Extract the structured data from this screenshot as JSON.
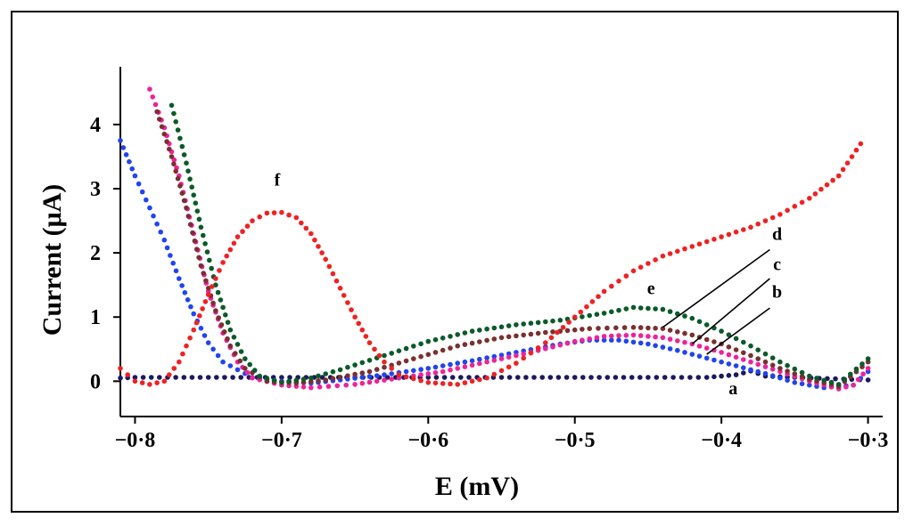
{
  "chart_data": {
    "type": "scatter",
    "title": "",
    "xlabel": "E (mV)",
    "ylabel": "Current (μA)",
    "xlim": [
      -0.81,
      -0.29
    ],
    "ylim": [
      -0.55,
      4.9
    ],
    "x_ticks": [
      -0.8,
      -0.7,
      -0.6,
      -0.5,
      -0.4,
      -0.3
    ],
    "x_tick_labels": [
      "−0·8",
      "−0·7",
      "−0·6",
      "−0·5",
      "−0·4",
      "−0·3"
    ],
    "y_ticks": [
      0,
      1,
      2,
      3,
      4
    ],
    "y_tick_labels": [
      "0",
      "1",
      "2",
      "3",
      "4"
    ],
    "grid": false,
    "series": [
      {
        "name": "a",
        "color": "#1a1a5c",
        "points": [
          [
            -0.81,
            0.05
          ],
          [
            -0.8,
            0.06
          ],
          [
            -0.75,
            0.06
          ],
          [
            -0.7,
            0.06
          ],
          [
            -0.65,
            0.06
          ],
          [
            -0.6,
            0.06
          ],
          [
            -0.55,
            0.06
          ],
          [
            -0.5,
            0.06
          ],
          [
            -0.45,
            0.06
          ],
          [
            -0.41,
            0.06
          ],
          [
            -0.39,
            0.1
          ],
          [
            -0.38,
            0.16
          ],
          [
            -0.37,
            0.08
          ],
          [
            -0.35,
            0.06
          ],
          [
            -0.3,
            0.02
          ]
        ]
      },
      {
        "name": "b",
        "color": "#2244ee",
        "points": [
          [
            -0.81,
            3.75
          ],
          [
            -0.8,
            3.2
          ],
          [
            -0.79,
            2.7
          ],
          [
            -0.78,
            2.2
          ],
          [
            -0.77,
            1.6
          ],
          [
            -0.76,
            1.05
          ],
          [
            -0.75,
            0.6
          ],
          [
            -0.74,
            0.3
          ],
          [
            -0.72,
            0.06
          ],
          [
            -0.7,
            0.0
          ],
          [
            -0.68,
            -0.03
          ],
          [
            -0.66,
            0.02
          ],
          [
            -0.63,
            0.1
          ],
          [
            -0.6,
            0.2
          ],
          [
            -0.57,
            0.32
          ],
          [
            -0.54,
            0.45
          ],
          [
            -0.51,
            0.58
          ],
          [
            -0.49,
            0.64
          ],
          [
            -0.47,
            0.64
          ],
          [
            -0.45,
            0.58
          ],
          [
            -0.43,
            0.48
          ],
          [
            -0.41,
            0.36
          ],
          [
            -0.39,
            0.24
          ],
          [
            -0.37,
            0.12
          ],
          [
            -0.35,
            -0.02
          ],
          [
            -0.33,
            -0.1
          ],
          [
            -0.31,
            -0.06
          ],
          [
            -0.3,
            0.15
          ]
        ]
      },
      {
        "name": "c",
        "color": "#ee2299",
        "points": [
          [
            -0.79,
            4.55
          ],
          [
            -0.78,
            3.95
          ],
          [
            -0.77,
            3.2
          ],
          [
            -0.76,
            2.3
          ],
          [
            -0.75,
            1.4
          ],
          [
            -0.74,
            0.75
          ],
          [
            -0.73,
            0.3
          ],
          [
            -0.72,
            0.05
          ],
          [
            -0.7,
            -0.06
          ],
          [
            -0.68,
            -0.1
          ],
          [
            -0.65,
            -0.05
          ],
          [
            -0.62,
            0.05
          ],
          [
            -0.59,
            0.15
          ],
          [
            -0.56,
            0.3
          ],
          [
            -0.53,
            0.45
          ],
          [
            -0.5,
            0.62
          ],
          [
            -0.48,
            0.7
          ],
          [
            -0.46,
            0.72
          ],
          [
            -0.44,
            0.68
          ],
          [
            -0.42,
            0.58
          ],
          [
            -0.4,
            0.45
          ],
          [
            -0.38,
            0.3
          ],
          [
            -0.36,
            0.15
          ],
          [
            -0.34,
            0.0
          ],
          [
            -0.32,
            -0.12
          ],
          [
            -0.31,
            -0.06
          ],
          [
            -0.3,
            0.2
          ]
        ]
      },
      {
        "name": "d",
        "color": "#7a3030",
        "points": [
          [
            -0.785,
            4.2
          ],
          [
            -0.775,
            3.5
          ],
          [
            -0.765,
            2.7
          ],
          [
            -0.755,
            1.8
          ],
          [
            -0.745,
            1.1
          ],
          [
            -0.735,
            0.55
          ],
          [
            -0.725,
            0.2
          ],
          [
            -0.71,
            0.0
          ],
          [
            -0.69,
            -0.03
          ],
          [
            -0.67,
            0.02
          ],
          [
            -0.64,
            0.15
          ],
          [
            -0.61,
            0.35
          ],
          [
            -0.58,
            0.55
          ],
          [
            -0.55,
            0.68
          ],
          [
            -0.52,
            0.76
          ],
          [
            -0.49,
            0.82
          ],
          [
            -0.46,
            0.84
          ],
          [
            -0.44,
            0.82
          ],
          [
            -0.42,
            0.72
          ],
          [
            -0.4,
            0.58
          ],
          [
            -0.38,
            0.4
          ],
          [
            -0.36,
            0.2
          ],
          [
            -0.34,
            0.03
          ],
          [
            -0.32,
            -0.08
          ],
          [
            -0.3,
            0.3
          ]
        ]
      },
      {
        "name": "e",
        "color": "#0b5a2a",
        "points": [
          [
            -0.775,
            4.3
          ],
          [
            -0.765,
            3.4
          ],
          [
            -0.755,
            2.4
          ],
          [
            -0.745,
            1.5
          ],
          [
            -0.735,
            0.8
          ],
          [
            -0.725,
            0.35
          ],
          [
            -0.715,
            0.08
          ],
          [
            -0.7,
            -0.02
          ],
          [
            -0.68,
            0.05
          ],
          [
            -0.66,
            0.18
          ],
          [
            -0.63,
            0.4
          ],
          [
            -0.6,
            0.62
          ],
          [
            -0.57,
            0.78
          ],
          [
            -0.54,
            0.88
          ],
          [
            -0.51,
            0.95
          ],
          [
            -0.48,
            1.06
          ],
          [
            -0.46,
            1.15
          ],
          [
            -0.44,
            1.12
          ],
          [
            -0.42,
            0.98
          ],
          [
            -0.4,
            0.78
          ],
          [
            -0.38,
            0.55
          ],
          [
            -0.36,
            0.3
          ],
          [
            -0.34,
            0.08
          ],
          [
            -0.32,
            -0.05
          ],
          [
            -0.3,
            0.35
          ]
        ]
      },
      {
        "name": "f",
        "color": "#ee2222",
        "points": [
          [
            -0.81,
            0.2
          ],
          [
            -0.8,
            0.0
          ],
          [
            -0.79,
            -0.05
          ],
          [
            -0.78,
            0.0
          ],
          [
            -0.77,
            0.3
          ],
          [
            -0.76,
            0.8
          ],
          [
            -0.75,
            1.35
          ],
          [
            -0.74,
            1.85
          ],
          [
            -0.73,
            2.25
          ],
          [
            -0.72,
            2.5
          ],
          [
            -0.71,
            2.62
          ],
          [
            -0.7,
            2.63
          ],
          [
            -0.69,
            2.55
          ],
          [
            -0.68,
            2.3
          ],
          [
            -0.67,
            1.9
          ],
          [
            -0.66,
            1.45
          ],
          [
            -0.65,
            1.0
          ],
          [
            -0.64,
            0.6
          ],
          [
            -0.63,
            0.3
          ],
          [
            -0.62,
            0.1
          ],
          [
            -0.6,
            -0.02
          ],
          [
            -0.58,
            -0.05
          ],
          [
            -0.56,
            0.05
          ],
          [
            -0.54,
            0.28
          ],
          [
            -0.52,
            0.6
          ],
          [
            -0.5,
            1.0
          ],
          [
            -0.48,
            1.4
          ],
          [
            -0.46,
            1.72
          ],
          [
            -0.44,
            1.95
          ],
          [
            -0.42,
            2.1
          ],
          [
            -0.4,
            2.25
          ],
          [
            -0.38,
            2.4
          ],
          [
            -0.36,
            2.6
          ],
          [
            -0.34,
            2.85
          ],
          [
            -0.32,
            3.2
          ],
          [
            -0.305,
            3.7
          ]
        ]
      }
    ],
    "annotations": [
      {
        "text": "a",
        "x": -0.392,
        "y": -0.2
      },
      {
        "text": "b",
        "x": -0.362,
        "y": 1.3
      },
      {
        "text": "c",
        "x": -0.362,
        "y": 1.73
      },
      {
        "text": "d",
        "x": -0.362,
        "y": 2.2
      },
      {
        "text": "e",
        "x": -0.448,
        "y": 1.36
      },
      {
        "text": "f",
        "x": -0.703,
        "y": 3.05
      }
    ],
    "leader_lines": [
      {
        "label": "d",
        "from": [
          -0.367,
          2.05
        ],
        "to": [
          -0.44,
          0.84
        ]
      },
      {
        "label": "c",
        "from": [
          -0.367,
          1.6
        ],
        "to": [
          -0.42,
          0.58
        ]
      },
      {
        "label": "b",
        "from": [
          -0.367,
          1.14
        ],
        "to": [
          -0.41,
          0.42
        ]
      }
    ]
  }
}
